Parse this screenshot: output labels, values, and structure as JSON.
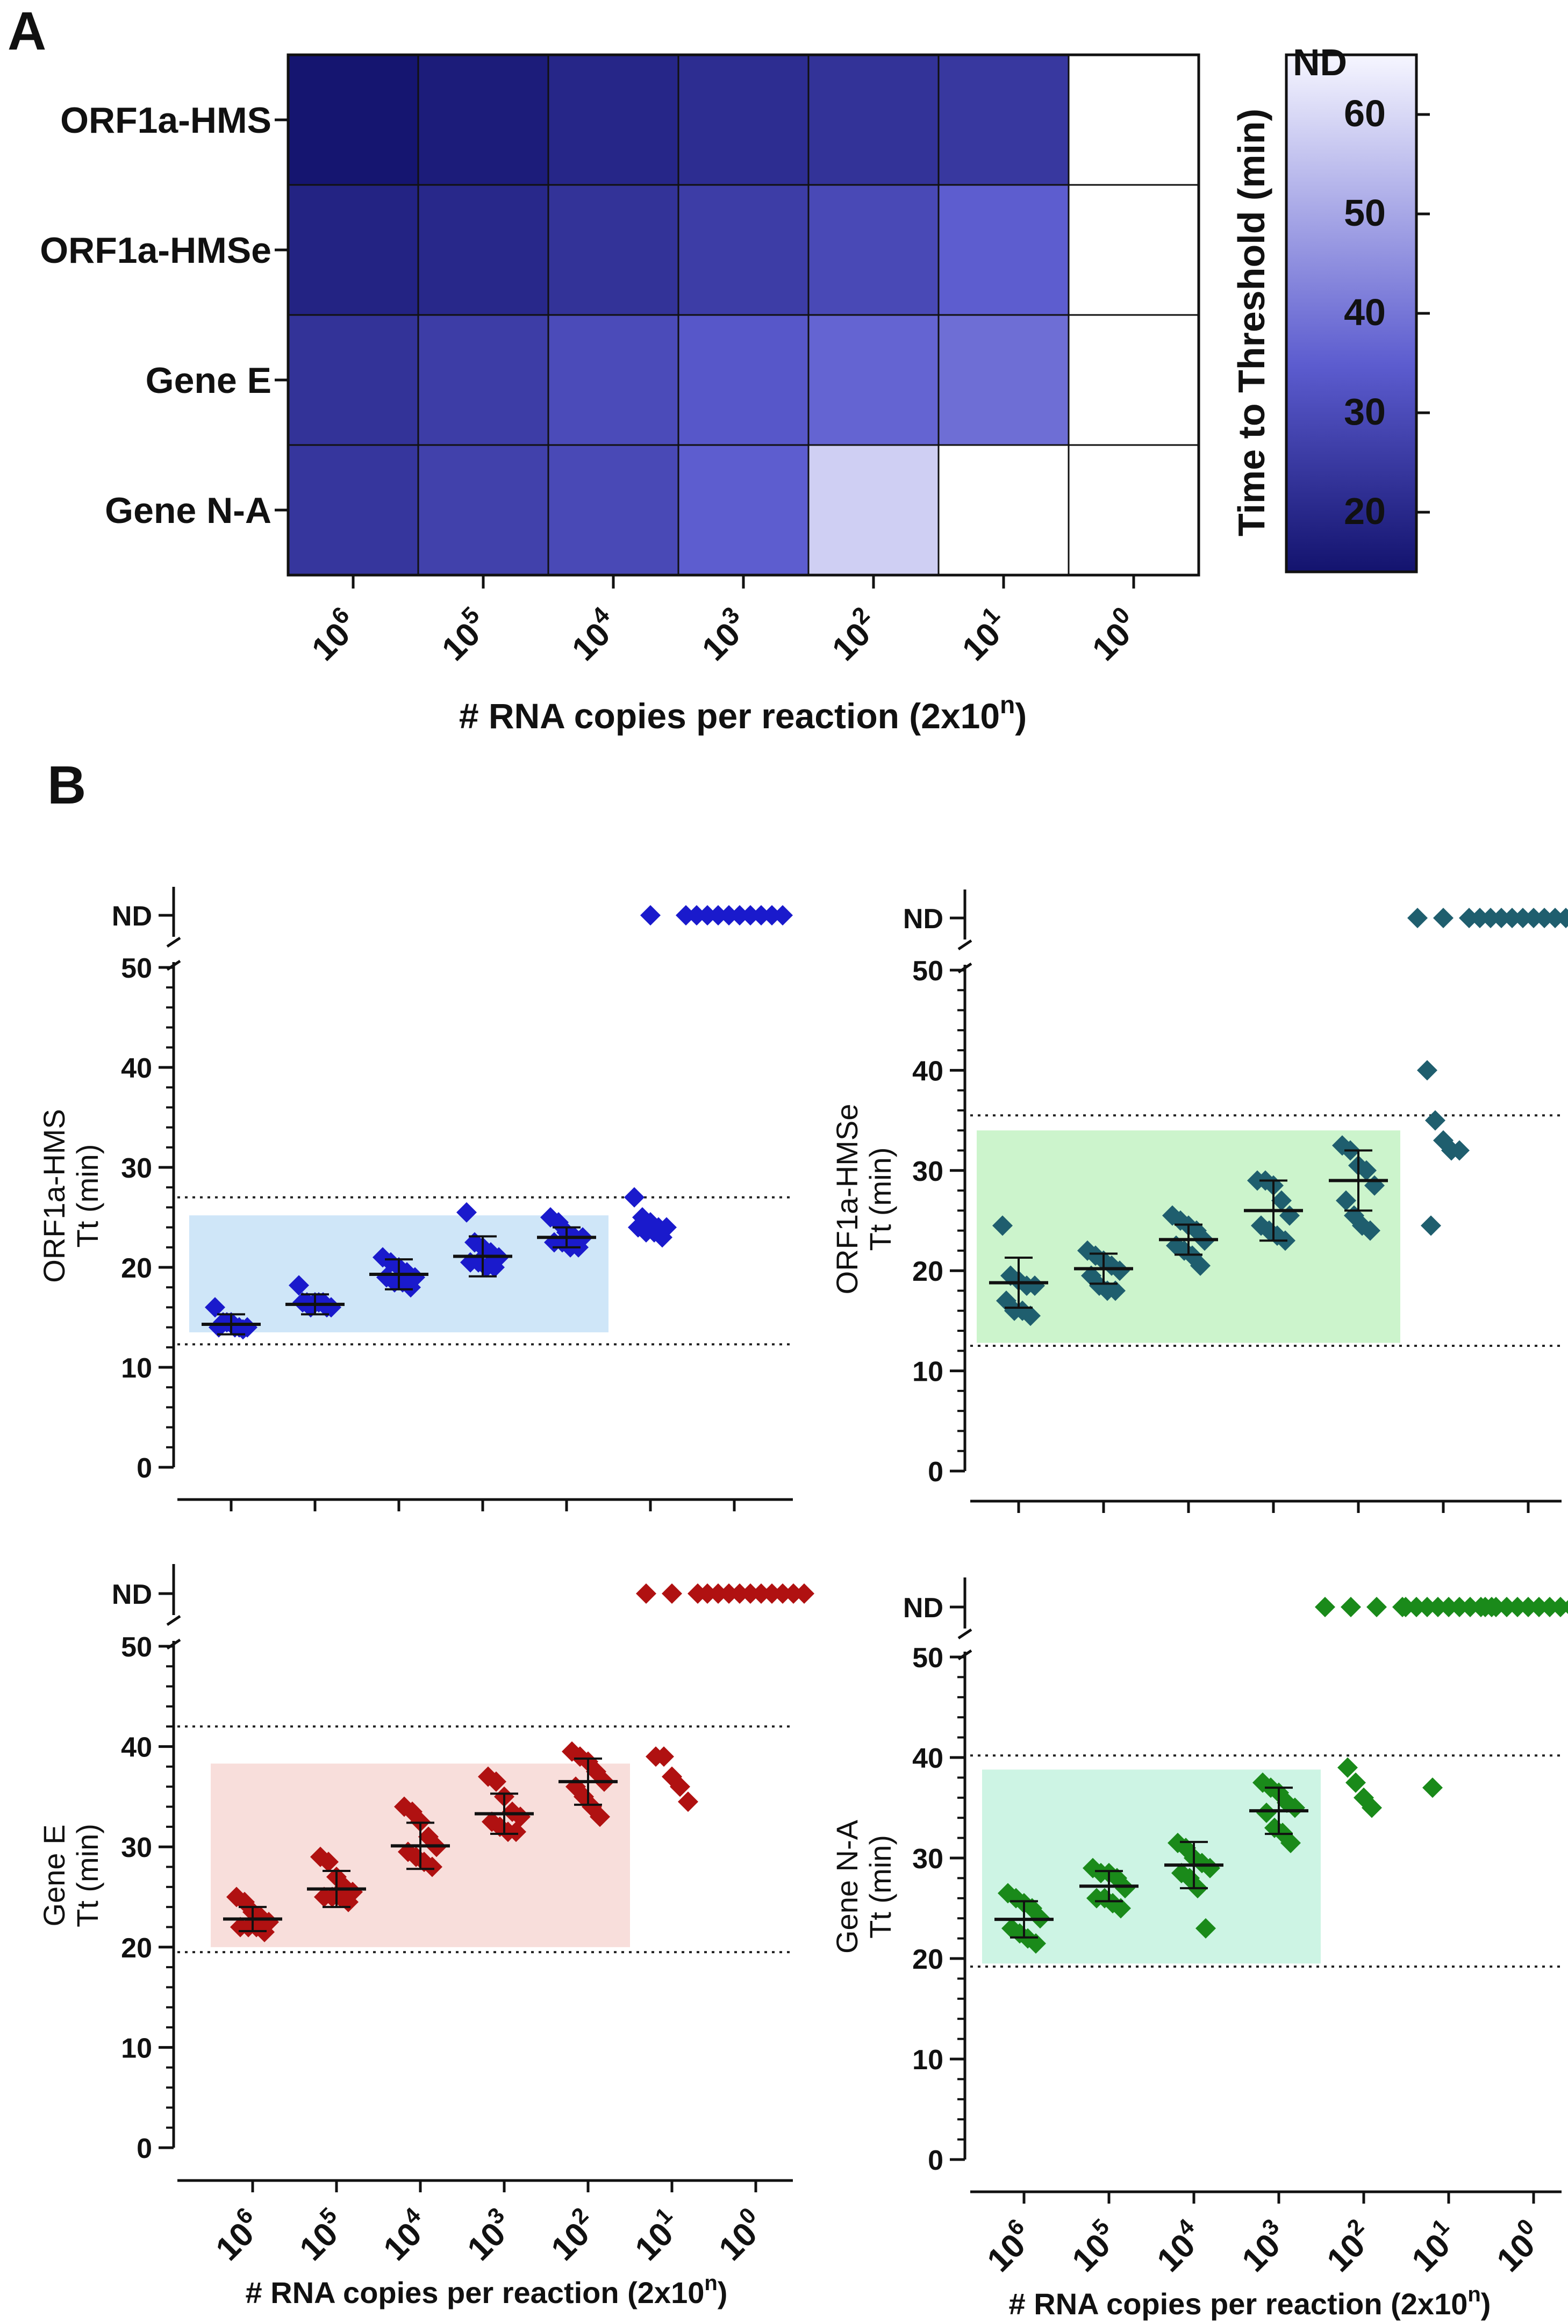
{
  "panel_labels": {
    "a": "A",
    "b": "B"
  },
  "nd_label": "ND",
  "x_categories": [
    "10^6",
    "10^5",
    "10^4",
    "10^3",
    "10^2",
    "10^1",
    "10^0"
  ],
  "x_axis_title": {
    "main": "# RNA copies per reaction (2x10",
    "sup": "n",
    "end": ")"
  },
  "colorbar": {
    "title": "Time to Threshold (min)",
    "ticks": [
      20,
      30,
      40,
      50,
      60
    ],
    "range": [
      14,
      66
    ],
    "top_label": "ND",
    "color_low": "#13136e",
    "color_mid": "#5c5ccf",
    "color_high": "#f6f6ff"
  },
  "chart_data": [
    {
      "type": "heatmap",
      "title": "A",
      "rows": [
        "ORF1a-HMS",
        "ORF1a-HMSe",
        "Gene E",
        "Gene N-A"
      ],
      "columns": [
        "10^6",
        "10^5",
        "10^4",
        "10^3",
        "10^2",
        "10^1",
        "10^0"
      ],
      "values": [
        [
          14.5,
          16.5,
          19.5,
          21.5,
          23,
          24.5,
          "ND"
        ],
        [
          18.5,
          20,
          23,
          26,
          29.5,
          35,
          "ND"
        ],
        [
          23,
          26,
          30,
          33.5,
          36.5,
          38.5,
          "ND"
        ],
        [
          24,
          27,
          29.5,
          35,
          58,
          "ND",
          "ND"
        ]
      ],
      "xlabel": "# RNA copies per reaction (2x10^n)",
      "colorbar_label": "Time to Threshold (min)"
    },
    {
      "type": "scatter",
      "title": "ORF1a-HMS",
      "ylabel": [
        "ORF1a-HMS",
        "Tt (min)"
      ],
      "color": "#1a1acc",
      "band_color": "#cfe6f8",
      "ylim": [
        0,
        50
      ],
      "yticks": [
        0,
        10,
        20,
        30,
        40,
        50
      ],
      "hlines": [
        27,
        12.3
      ],
      "band": {
        "from_category": 0,
        "to_category": 4,
        "y": [
          13.5,
          25.2
        ]
      },
      "categories": [
        "10^6",
        "10^5",
        "10^4",
        "10^3",
        "10^2",
        "10^1",
        "10^0"
      ],
      "points": [
        [
          16,
          14.5,
          14.5,
          14,
          14,
          14,
          14.5,
          14,
          13.8
        ],
        [
          18.2,
          16.5,
          16.5,
          16.5,
          16,
          16.5,
          16,
          16.5,
          16
        ],
        [
          21,
          20.5,
          20,
          19.5,
          19,
          19,
          18.5,
          18.5,
          18
        ],
        [
          25.5,
          22.5,
          22,
          21.5,
          21,
          20.5,
          20.5,
          20,
          20
        ],
        [
          25,
          24.5,
          23.5,
          23,
          23,
          22.5,
          22.5,
          22,
          22
        ],
        [
          27,
          25,
          24.5,
          24,
          24,
          24,
          23.5,
          23.5,
          23,
          "ND"
        ],
        [
          "ND",
          "ND",
          "ND",
          "ND",
          "ND",
          "ND",
          "ND",
          "ND",
          "ND",
          "ND"
        ]
      ],
      "means": [
        14.3,
        16.3,
        19.3,
        21.1,
        23,
        null,
        null
      ],
      "err": [
        1,
        1,
        1.5,
        2,
        1,
        null,
        null
      ]
    },
    {
      "type": "scatter",
      "title": "ORF1a-HMSe",
      "ylabel": [
        "ORF1a-HMSe",
        "Tt (min)"
      ],
      "color": "#1f5e6e",
      "band_color": "#ccf4cc",
      "ylim": [
        0,
        50
      ],
      "yticks": [
        0,
        10,
        20,
        30,
        40,
        50
      ],
      "hlines": [
        35.5,
        12.5
      ],
      "band": {
        "from_category": 0,
        "to_category": 4,
        "y": [
          12.8,
          34
        ]
      },
      "categories": [
        "10^6",
        "10^5",
        "10^4",
        "10^3",
        "10^2",
        "10^1",
        "10^0"
      ],
      "points": [
        [
          24.5,
          19.5,
          19,
          18.5,
          18.5,
          17,
          16,
          16,
          15.5
        ],
        [
          22,
          21.5,
          21,
          20.5,
          20,
          19.5,
          18.5,
          18,
          18
        ],
        [
          25.5,
          25,
          24.5,
          24,
          23,
          22.5,
          22,
          21.5,
          20.5
        ],
        [
          29,
          29,
          28.5,
          27,
          25.5,
          24.5,
          24,
          23.5,
          23
        ],
        [
          32.5,
          32,
          30.5,
          30,
          28.5,
          27,
          25.5,
          24.5,
          24
        ],
        [
          40,
          35,
          33,
          32,
          32,
          24.5,
          "ND",
          "ND",
          "ND"
        ],
        [
          "ND",
          "ND",
          "ND",
          "ND",
          "ND",
          "ND",
          "ND",
          "ND",
          "ND",
          "ND"
        ]
      ],
      "means": [
        18.8,
        20.2,
        23.1,
        26,
        29,
        null,
        null
      ],
      "err": [
        2.5,
        1.5,
        1.5,
        3,
        3,
        null,
        null
      ]
    },
    {
      "type": "scatter",
      "title": "Gene E",
      "ylabel": [
        "Gene E",
        "Tt (min)"
      ],
      "color": "#b01111",
      "band_color": "#f8dedb",
      "ylim": [
        0,
        50
      ],
      "yticks": [
        0,
        10,
        20,
        30,
        40,
        50
      ],
      "hlines": [
        42,
        19.5
      ],
      "band": {
        "from_category": 0,
        "to_category": 4,
        "y": [
          20,
          38.3
        ]
      },
      "categories": [
        "10^6",
        "10^5",
        "10^4",
        "10^3",
        "10^2",
        "10^1",
        "10^0"
      ],
      "points": [
        [
          25,
          24.5,
          23.5,
          23,
          22.5,
          22,
          22,
          22,
          21.5
        ],
        [
          29,
          28.5,
          27,
          26,
          25.5,
          25,
          25,
          25,
          24.5
        ],
        [
          34,
          33.5,
          32.5,
          31,
          30,
          29.5,
          29,
          28.5,
          28
        ],
        [
          37,
          36.5,
          35,
          33.5,
          33,
          32.5,
          32,
          31.5,
          31.5
        ],
        [
          39.5,
          39,
          38.5,
          37.5,
          36.5,
          36,
          35,
          34,
          33
        ],
        [
          39,
          39,
          37,
          36,
          34.5,
          "ND",
          "ND",
          "ND"
        ],
        [
          "ND",
          "ND",
          "ND",
          "ND",
          "ND",
          "ND",
          "ND",
          "ND",
          "ND",
          "ND"
        ]
      ],
      "means": [
        22.8,
        25.8,
        30.1,
        33.3,
        36.5,
        null,
        null
      ],
      "err": [
        1.2,
        1.8,
        2.3,
        2,
        2.3,
        null,
        null
      ]
    },
    {
      "type": "scatter",
      "title": "Gene N-A",
      "ylabel": [
        "Gene N-A",
        "Tt (min)"
      ],
      "color": "#1a8a1a",
      "band_color": "#cdf4e4",
      "ylim": [
        0,
        50
      ],
      "yticks": [
        0,
        10,
        20,
        30,
        40,
        50
      ],
      "hlines": [
        40.2,
        19.2
      ],
      "band": {
        "from_category": 0,
        "to_category": 3,
        "y": [
          19.5,
          38.8
        ]
      },
      "categories": [
        "10^6",
        "10^5",
        "10^4",
        "10^3",
        "10^2",
        "10^1",
        "10^0"
      ],
      "points": [
        [
          26.5,
          26,
          25.5,
          25,
          24,
          23,
          22.5,
          22,
          21.5
        ],
        [
          29,
          28.5,
          28.5,
          28,
          27,
          26,
          26,
          25.5,
          25
        ],
        [
          31.5,
          31,
          30,
          29.5,
          29,
          28.5,
          28,
          27,
          23
        ],
        [
          37.5,
          37,
          36.5,
          35.5,
          35,
          34.5,
          33,
          32.5,
          31.5
        ],
        [
          39,
          37.5,
          36,
          35,
          "ND",
          "ND",
          "ND",
          "ND"
        ],
        [
          37,
          "ND",
          "ND",
          "ND",
          "ND",
          "ND",
          "ND",
          "ND",
          "ND",
          "ND"
        ],
        [
          "ND",
          "ND",
          "ND",
          "ND",
          "ND",
          "ND",
          "ND",
          "ND",
          "ND",
          "ND"
        ]
      ],
      "means": [
        23.9,
        27.2,
        29.3,
        34.7,
        null,
        null,
        null
      ],
      "err": [
        1.8,
        1.5,
        2.3,
        2.3,
        null,
        null,
        null
      ]
    }
  ]
}
